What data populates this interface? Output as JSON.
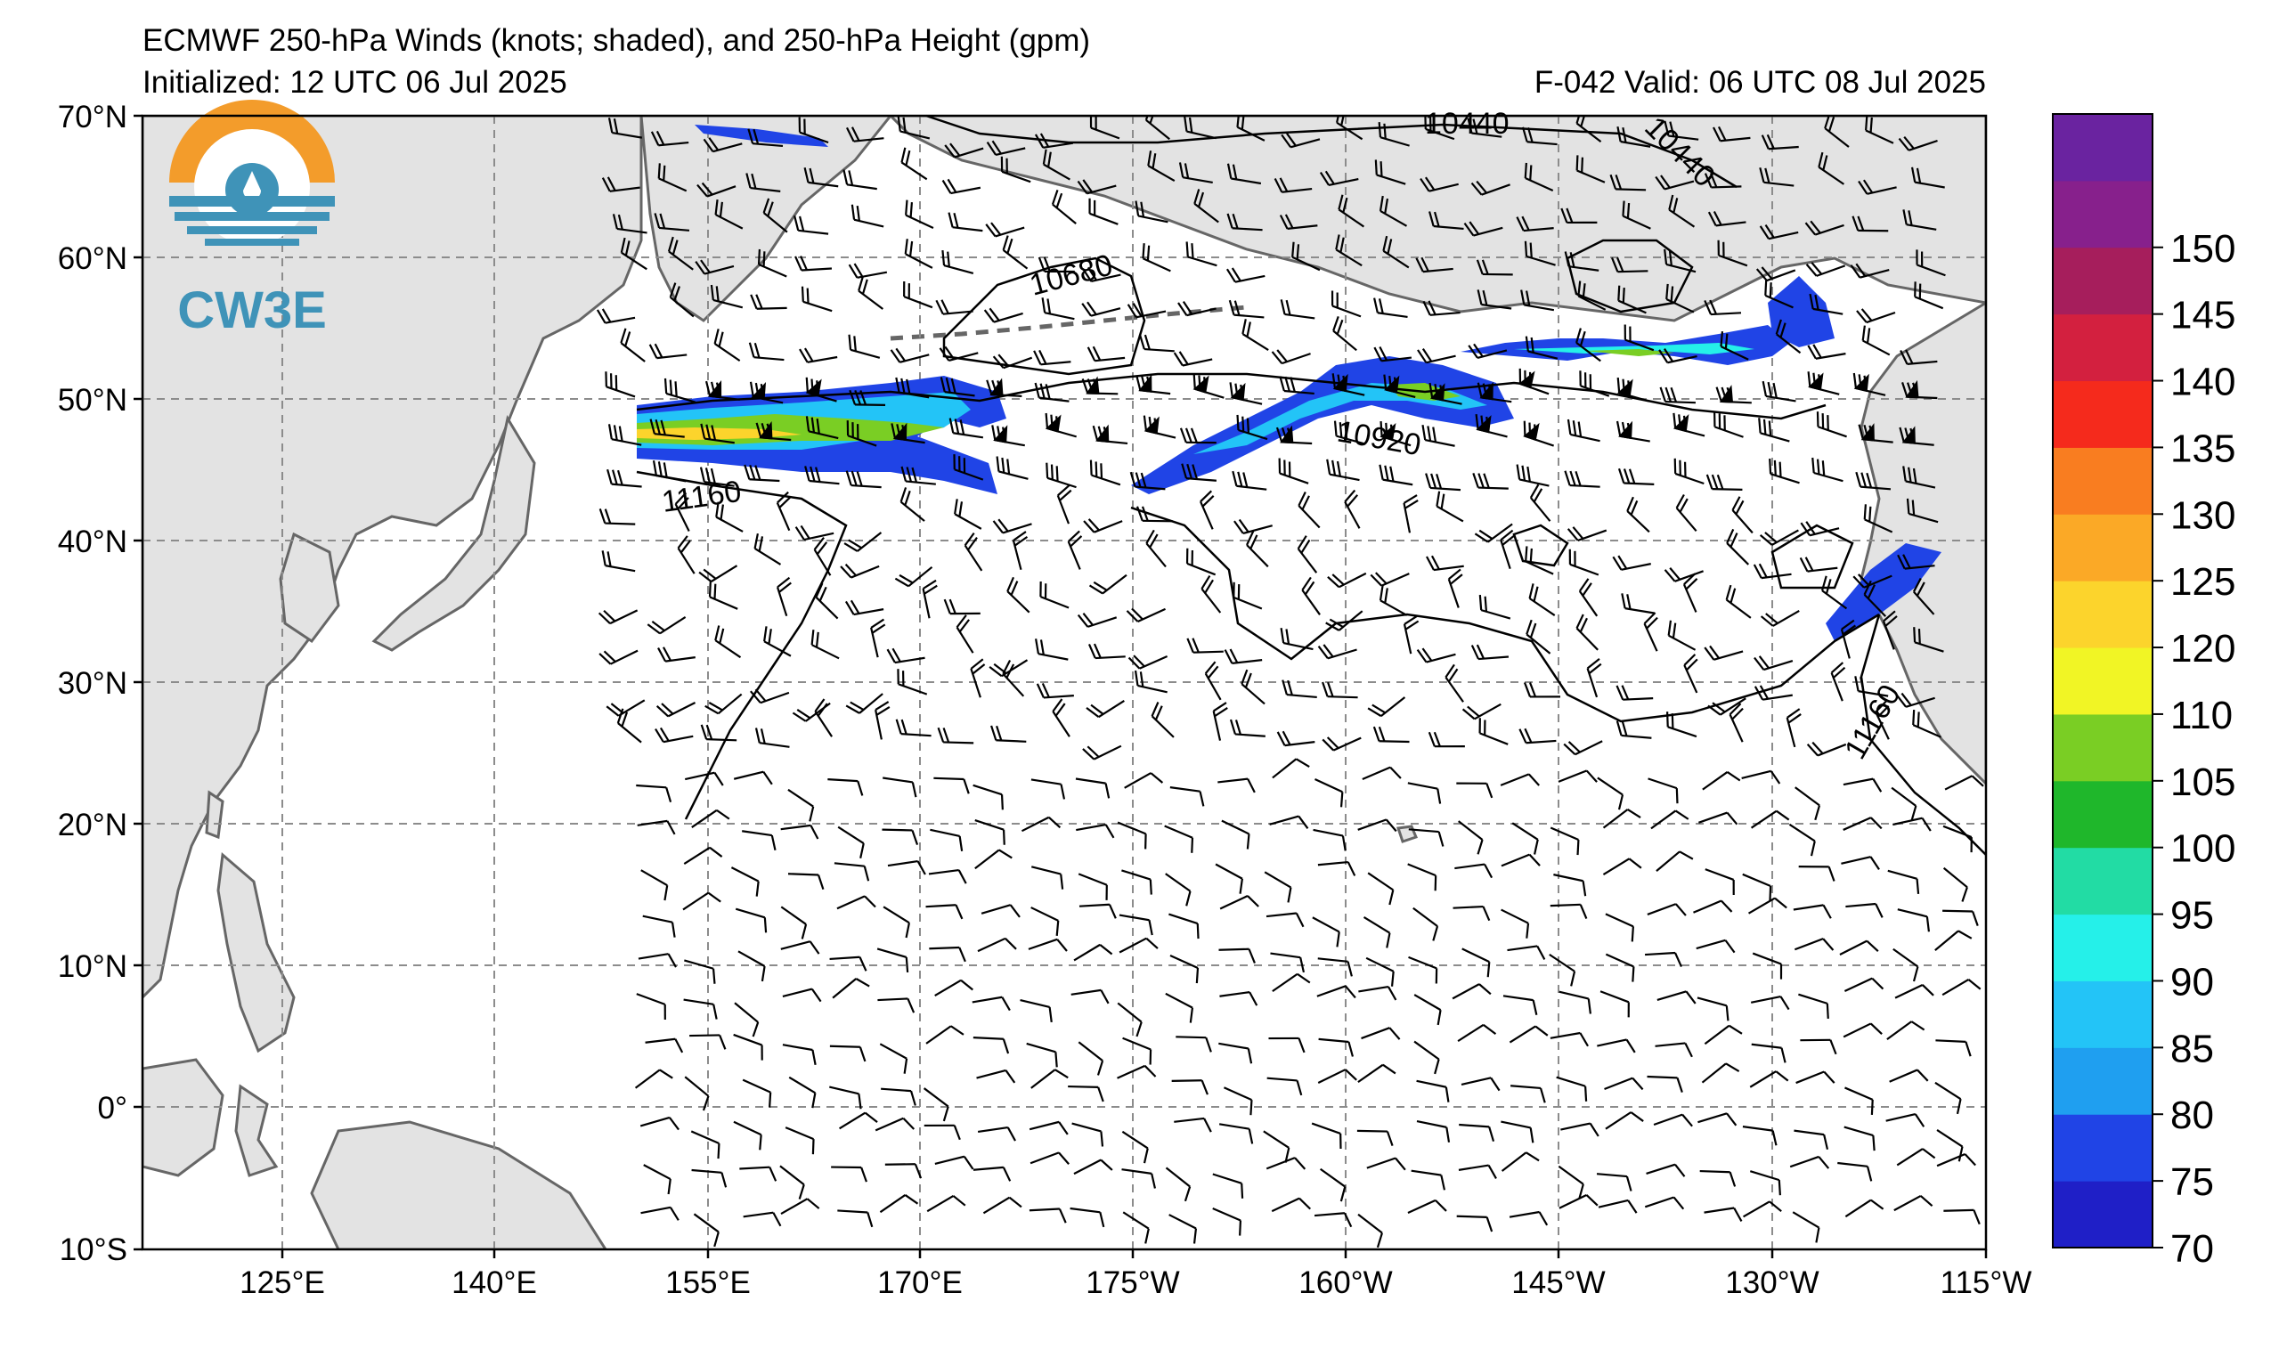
{
  "title": "ECMWF 250-hPa Winds (knots; shaded), and 250-hPa Height (gpm)",
  "init_line": "Initialized: 12 UTC 06 Jul 2025",
  "valid_line": "F-042  Valid: 06 UTC 08 Jul 2025",
  "logo_text": "CW3E",
  "lat_labels": [
    "70°N",
    "60°N",
    "50°N",
    "40°N",
    "30°N",
    "20°N",
    "10°N",
    "0°",
    "10°S"
  ],
  "lon_labels": [
    "125°E",
    "140°E",
    "155°E",
    "170°E",
    "175°W",
    "160°W",
    "145°W",
    "130°W",
    "115°W"
  ],
  "contour_labels": [
    {
      "id": "c10680",
      "text": "10680"
    },
    {
      "id": "c10920",
      "text": "10920"
    },
    {
      "id": "c11160a",
      "text": "11160"
    },
    {
      "id": "c11160b",
      "text": "11160"
    },
    {
      "id": "c10440a",
      "text": "10440"
    },
    {
      "id": "c10440b",
      "text": "10440"
    }
  ],
  "colorbar": {
    "ticks": [
      "70",
      "75",
      "80",
      "85",
      "90",
      "95",
      "100",
      "105",
      "110",
      "120",
      "125",
      "130",
      "135",
      "140",
      "145",
      "150"
    ],
    "colors": [
      "#1f1fc7",
      "#2044e6",
      "#1f9ff0",
      "#23c4f7",
      "#25f0e9",
      "#22dca4",
      "#1fb72b",
      "#7ace24",
      "#f1f525",
      "#fcd42c",
      "#fba926",
      "#f97d20",
      "#f52a1c",
      "#d3203f",
      "#a61e5c",
      "#87208c",
      "#6a23a0"
    ]
  },
  "colors": {
    "land": "#e3e3e3",
    "coast": "#666666",
    "grid": "#8c8c8c"
  }
}
